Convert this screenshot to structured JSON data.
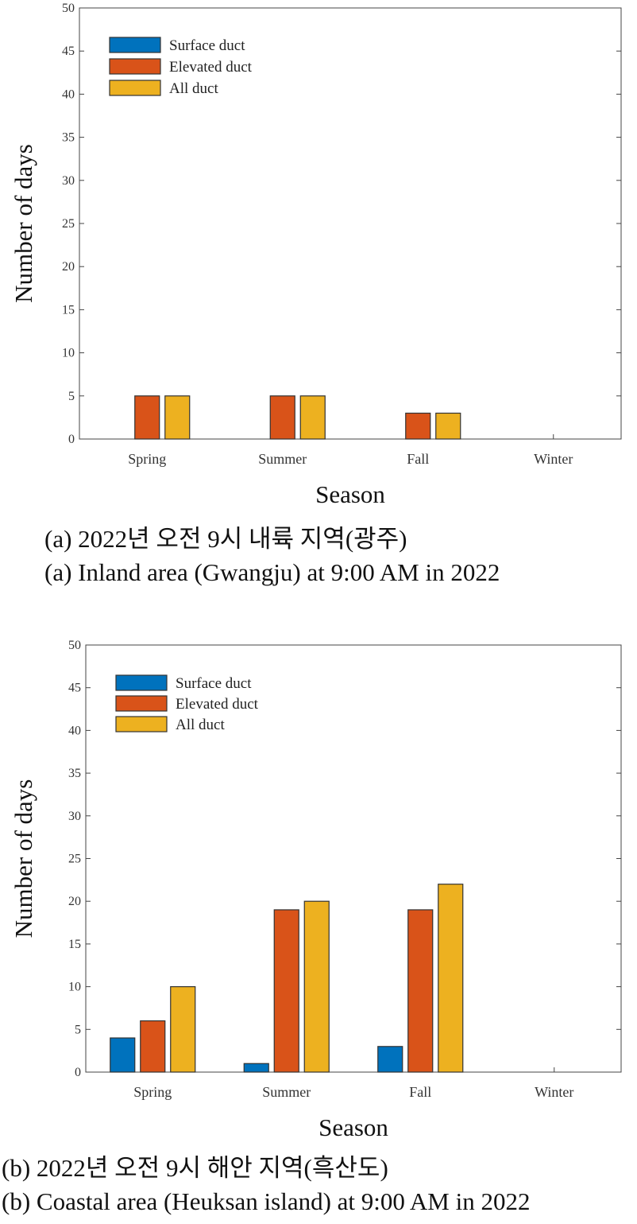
{
  "colors": {
    "surface": "#0072BD",
    "elevated": "#D95319",
    "all": "#EDB120"
  },
  "chart_data": [
    {
      "type": "bar",
      "categories": [
        "Spring",
        "Summer",
        "Fall",
        "Winter"
      ],
      "xlabel": "Season",
      "ylabel": "Number of days",
      "ylim": [
        0,
        50
      ],
      "yticks": [
        0,
        5,
        10,
        15,
        20,
        25,
        30,
        35,
        40,
        45,
        50
      ],
      "legend_position": "top-left",
      "grid": false,
      "series": [
        {
          "name": "Surface duct",
          "values": [
            0,
            0,
            0,
            0
          ]
        },
        {
          "name": "Elevated duct",
          "values": [
            5,
            5,
            3,
            0
          ]
        },
        {
          "name": "All duct",
          "values": [
            5,
            5,
            3,
            0
          ]
        }
      ]
    },
    {
      "type": "bar",
      "categories": [
        "Spring",
        "Summer",
        "Fall",
        "Winter"
      ],
      "xlabel": "Season",
      "ylabel": "Number of days",
      "ylim": [
        0,
        50
      ],
      "yticks": [
        0,
        5,
        10,
        15,
        20,
        25,
        30,
        35,
        40,
        45,
        50
      ],
      "legend_position": "top-left",
      "grid": false,
      "series": [
        {
          "name": "Surface duct",
          "values": [
            4,
            1,
            3,
            0
          ]
        },
        {
          "name": "Elevated duct",
          "values": [
            6,
            19,
            19,
            0
          ]
        },
        {
          "name": "All duct",
          "values": [
            10,
            20,
            22,
            0
          ]
        }
      ]
    }
  ],
  "captions": {
    "a_korean": "(a) 2022년 오전 9시 내륙 지역(광주)",
    "a_english": "(a) Inland area (Gwangju) at 9:00 AM in 2022",
    "b_korean": "(b) 2022년 오전 9시 해안 지역(흑산도)",
    "b_english": "(b) Coastal area (Heuksan island) at 9:00 AM in 2022"
  }
}
